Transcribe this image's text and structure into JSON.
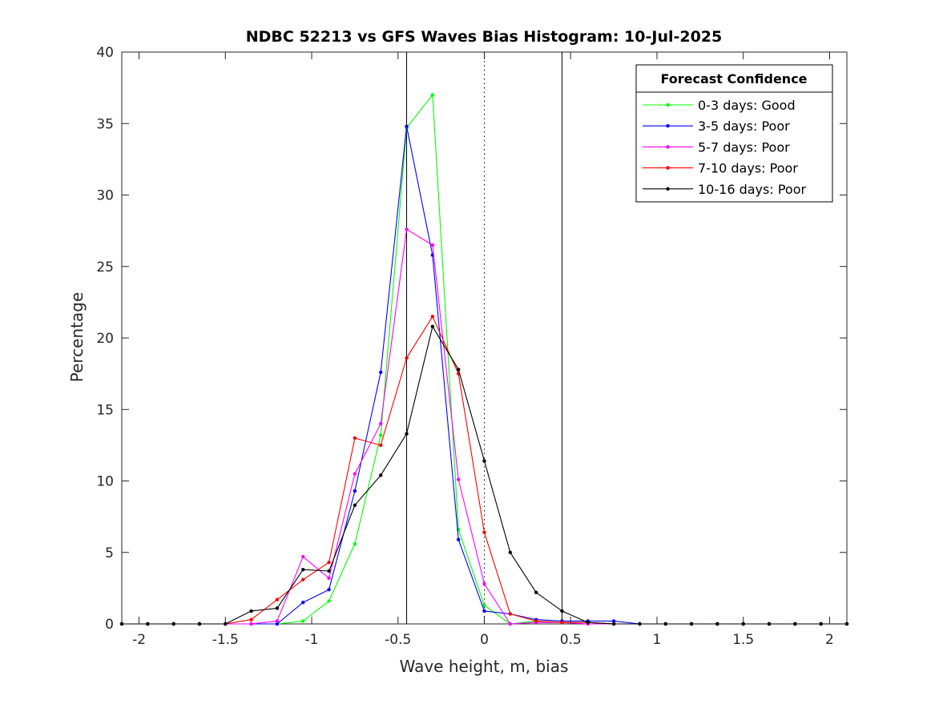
{
  "chart_data": {
    "type": "line",
    "title": "NDBC 52213 vs GFS Waves Bias Histogram: 10-Jul-2025",
    "xlabel": "Wave height, m, bias",
    "ylabel": "Percentage",
    "xlim": [
      -2.1,
      2.1
    ],
    "ylim": [
      0,
      40
    ],
    "xticks": [
      -2,
      -1.5,
      -1,
      -0.5,
      0,
      0.5,
      1,
      1.5,
      2
    ],
    "xtick_labels": [
      "-2",
      "-1.5",
      "-1",
      "-0.5",
      "0",
      "0.5",
      "1",
      "1.5",
      "2"
    ],
    "yticks": [
      0,
      5,
      10,
      15,
      20,
      25,
      30,
      35,
      40
    ],
    "ytick_labels": [
      "0",
      "5",
      "10",
      "15",
      "20",
      "25",
      "30",
      "35",
      "40"
    ],
    "grid": false,
    "vertical_lines": [
      {
        "x": -0.45,
        "style": "solid"
      },
      {
        "x": 0,
        "style": "dotted"
      },
      {
        "x": 0.45,
        "style": "solid"
      }
    ],
    "legend": {
      "title": "Forecast Confidence",
      "position": "top-right"
    },
    "x": [
      -2.1,
      -1.95,
      -1.8,
      -1.65,
      -1.5,
      -1.35,
      -1.2,
      -1.05,
      -0.9,
      -0.75,
      -0.6,
      -0.45,
      -0.3,
      -0.15,
      0,
      0.15,
      0.3,
      0.45,
      0.6,
      0.75,
      0.9,
      1.05,
      1.2,
      1.35,
      1.5,
      1.65,
      1.8,
      1.95,
      2.1
    ],
    "series": [
      {
        "name": "0-3 days: Good",
        "color": "#00ff00",
        "values": [
          0,
          0,
          0,
          0,
          0,
          0,
          0,
          0.2,
          1.6,
          5.6,
          13.2,
          34.7,
          37.0,
          6.6,
          1.3,
          0,
          0.2,
          0.1,
          0.1,
          0,
          0,
          0,
          0,
          0,
          0,
          0,
          0,
          0,
          0
        ]
      },
      {
        "name": "3-5 days: Poor",
        "color": "#0000ff",
        "values": [
          0,
          0,
          0,
          0,
          0,
          0,
          0,
          1.5,
          2.4,
          9.3,
          17.6,
          34.8,
          25.8,
          5.9,
          0.9,
          0.7,
          0.3,
          0.2,
          0.2,
          0.2,
          0,
          0,
          0,
          0,
          0,
          0,
          0,
          0,
          0
        ]
      },
      {
        "name": "5-7 days: Poor",
        "color": "#ff00ff",
        "values": [
          0,
          0,
          0,
          0,
          0,
          0,
          0.2,
          4.7,
          3.2,
          10.5,
          14.0,
          27.6,
          26.5,
          10.1,
          2.8,
          0,
          0.1,
          0.1,
          0,
          0,
          0,
          0,
          0,
          0,
          0,
          0,
          0,
          0,
          0
        ]
      },
      {
        "name": "7-10 days: Poor",
        "color": "#ff0000",
        "values": [
          0,
          0,
          0,
          0,
          0,
          0.3,
          1.7,
          3.1,
          4.3,
          13.0,
          12.5,
          18.6,
          21.5,
          17.5,
          6.4,
          0.7,
          0.2,
          0.1,
          0.1,
          0,
          0,
          0,
          0,
          0,
          0,
          0,
          0,
          0,
          0
        ]
      },
      {
        "name": "10-16 days: Poor",
        "color": "#000000",
        "values": [
          0,
          0,
          0,
          0,
          0,
          0.9,
          1.1,
          3.8,
          3.7,
          8.3,
          10.4,
          13.3,
          20.8,
          17.8,
          11.4,
          5.0,
          2.2,
          0.9,
          0.1,
          0,
          0,
          0,
          0,
          0,
          0,
          0,
          0,
          0,
          0
        ]
      }
    ]
  }
}
